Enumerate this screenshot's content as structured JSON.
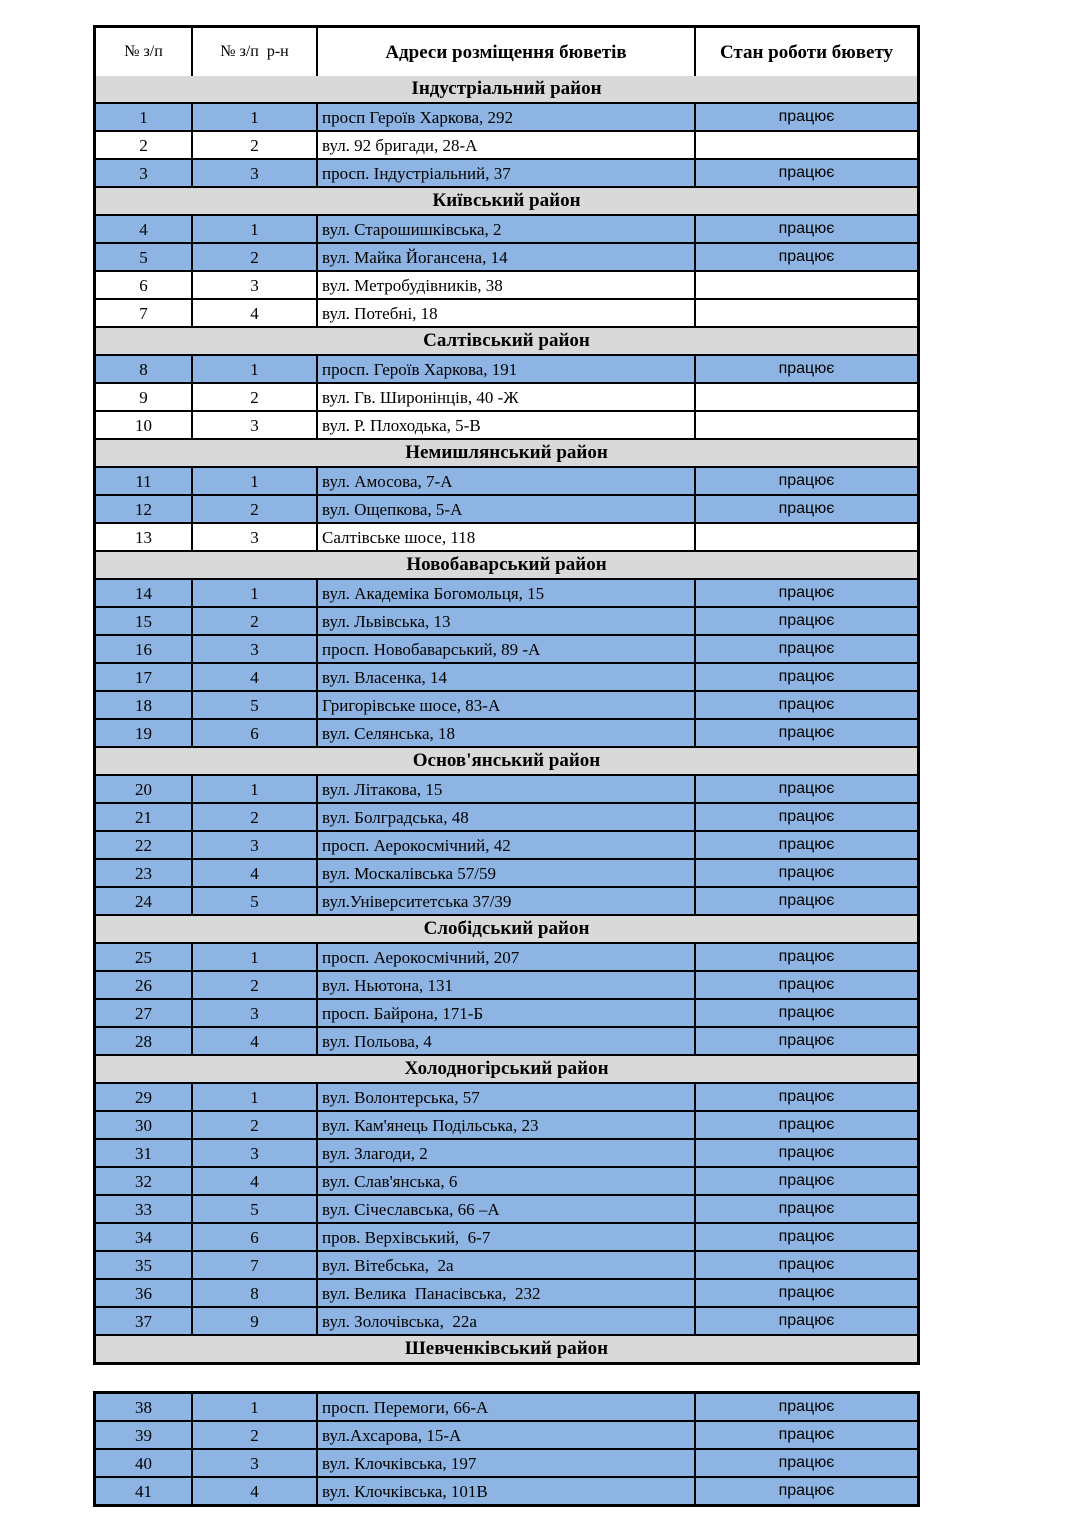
{
  "colors": {
    "working_row": "#8DB4E2",
    "section_band": "#D9D9D9",
    "border": "#000000",
    "page_background": "#FFFFFF"
  },
  "table": {
    "columns": [
      "№ з/п",
      "№ з/п  р-н",
      "Адреси розміщення бюветів",
      "Стан роботи бювету"
    ],
    "working_label": "працює",
    "sections": [
      {
        "name": "Індустріальний район",
        "rows": [
          {
            "n": "1",
            "rn": "1",
            "address": "просп Героїв Харкова, 292",
            "status": "працює"
          },
          {
            "n": "2",
            "rn": "2",
            "address": "вул. 92 бригади, 28-А",
            "status": ""
          },
          {
            "n": "3",
            "rn": "3",
            "address": "просп. Індустріальний, 37",
            "status": "працює"
          }
        ]
      },
      {
        "name": "Київський район",
        "rows": [
          {
            "n": "4",
            "rn": "1",
            "address": "вул. Старошишківська, 2",
            "status": "працює"
          },
          {
            "n": "5",
            "rn": "2",
            "address": "вул. Майка Йогансена, 14",
            "status": "працює"
          },
          {
            "n": "6",
            "rn": "3",
            "address": "вул. Метробудівників, 38",
            "status": ""
          },
          {
            "n": "7",
            "rn": "4",
            "address": "вул. Потебні, 18",
            "status": ""
          }
        ]
      },
      {
        "name": "Салтівський район",
        "rows": [
          {
            "n": "8",
            "rn": "1",
            "address": "просп. Героїв Харкова, 191",
            "status": "працює"
          },
          {
            "n": "9",
            "rn": "2",
            "address": "вул. Гв. Широнінців, 40 -Ж",
            "status": ""
          },
          {
            "n": "10",
            "rn": "3",
            "address": "вул. Р. Плоходька, 5-В",
            "status": ""
          }
        ]
      },
      {
        "name": "Немишлянський район",
        "rows": [
          {
            "n": "11",
            "rn": "1",
            "address": "вул. Амосова, 7-А",
            "status": "працює"
          },
          {
            "n": "12",
            "rn": "2",
            "address": "вул. Ощепкова, 5-А",
            "status": "працює"
          },
          {
            "n": "13",
            "rn": "3",
            "address": "Салтівське шосе, 118",
            "status": ""
          }
        ]
      },
      {
        "name": "Новобаварський район",
        "rows": [
          {
            "n": "14",
            "rn": "1",
            "address": "вул. Академіка Богомольця, 15",
            "status": "працює"
          },
          {
            "n": "15",
            "rn": "2",
            "address": "вул. Львівська, 13",
            "status": "працює"
          },
          {
            "n": "16",
            "rn": "3",
            "address": "просп. Новобаварський, 89 -А",
            "status": "працює"
          },
          {
            "n": "17",
            "rn": "4",
            "address": "вул. Власенка, 14",
            "status": "працює"
          },
          {
            "n": "18",
            "rn": "5",
            "address": "Григорівське шосе, 83-А",
            "status": "працює"
          },
          {
            "n": "19",
            "rn": "6",
            "address": "вул. Селянська, 18",
            "status": "працює"
          }
        ]
      },
      {
        "name": "Основ'янський район",
        "rows": [
          {
            "n": "20",
            "rn": "1",
            "address": "вул. Літакова, 15",
            "status": "працює"
          },
          {
            "n": "21",
            "rn": "2",
            "address": "вул. Болградська, 48",
            "status": "працює"
          },
          {
            "n": "22",
            "rn": "3",
            "address": "просп. Аерокосмічний, 42",
            "status": "працює"
          },
          {
            "n": "23",
            "rn": "4",
            "address": "вул. Москалівська 57/59",
            "status": "працює"
          },
          {
            "n": "24",
            "rn": "5",
            "address": "вул.Університетська 37/39",
            "status": "працює"
          }
        ]
      },
      {
        "name": "Слобідський район",
        "rows": [
          {
            "n": "25",
            "rn": "1",
            "address": "просп. Аерокосмічний, 207",
            "status": "працює"
          },
          {
            "n": "26",
            "rn": "2",
            "address": "вул. Ньютона, 131",
            "status": "працює"
          },
          {
            "n": "27",
            "rn": "3",
            "address": "просп. Байрона, 171-Б",
            "status": "працює"
          },
          {
            "n": "28",
            "rn": "4",
            "address": "вул. Польова, 4",
            "status": "працює"
          }
        ]
      },
      {
        "name": "Холодногірський район",
        "rows": [
          {
            "n": "29",
            "rn": "1",
            "address": "вул. Волонтерська, 57",
            "status": "працює"
          },
          {
            "n": "30",
            "rn": "2",
            "address": "вул. Кам'янець Подільська, 23",
            "status": "працює"
          },
          {
            "n": "31",
            "rn": "3",
            "address": "вул. Злагоди, 2",
            "status": "працює"
          },
          {
            "n": "32",
            "rn": "4",
            "address": "вул. Слав'янська, 6",
            "status": "працює"
          },
          {
            "n": "33",
            "rn": "5",
            "address": "вул. Січеславська, 66 –А",
            "status": "працює"
          },
          {
            "n": "34",
            "rn": "6",
            "address": "пров. Верхівський,  6-7",
            "status": "працює"
          },
          {
            "n": "35",
            "rn": "7",
            "address": "вул. Вітебська,  2а",
            "status": "працює"
          },
          {
            "n": "36",
            "rn": "8",
            "address": "вул. Велика  Панасівська,  232",
            "status": "працює"
          },
          {
            "n": "37",
            "rn": "9",
            "address": "вул. Золочівська,  22а",
            "status": "працює"
          }
        ]
      },
      {
        "name": "Шевченківський район",
        "rows": []
      }
    ],
    "continuation_rows": [
      {
        "n": "38",
        "rn": "1",
        "address": "просп. Перемоги, 66-А",
        "status": "працює"
      },
      {
        "n": "39",
        "rn": "2",
        "address": "вул.Ахсарова, 15-А",
        "status": "працює"
      },
      {
        "n": "40",
        "rn": "3",
        "address": "вул. Клочківська, 197",
        "status": "працює"
      },
      {
        "n": "41",
        "rn": "4",
        "address": "вул. Клочківська, 101В",
        "status": "працює"
      }
    ]
  }
}
